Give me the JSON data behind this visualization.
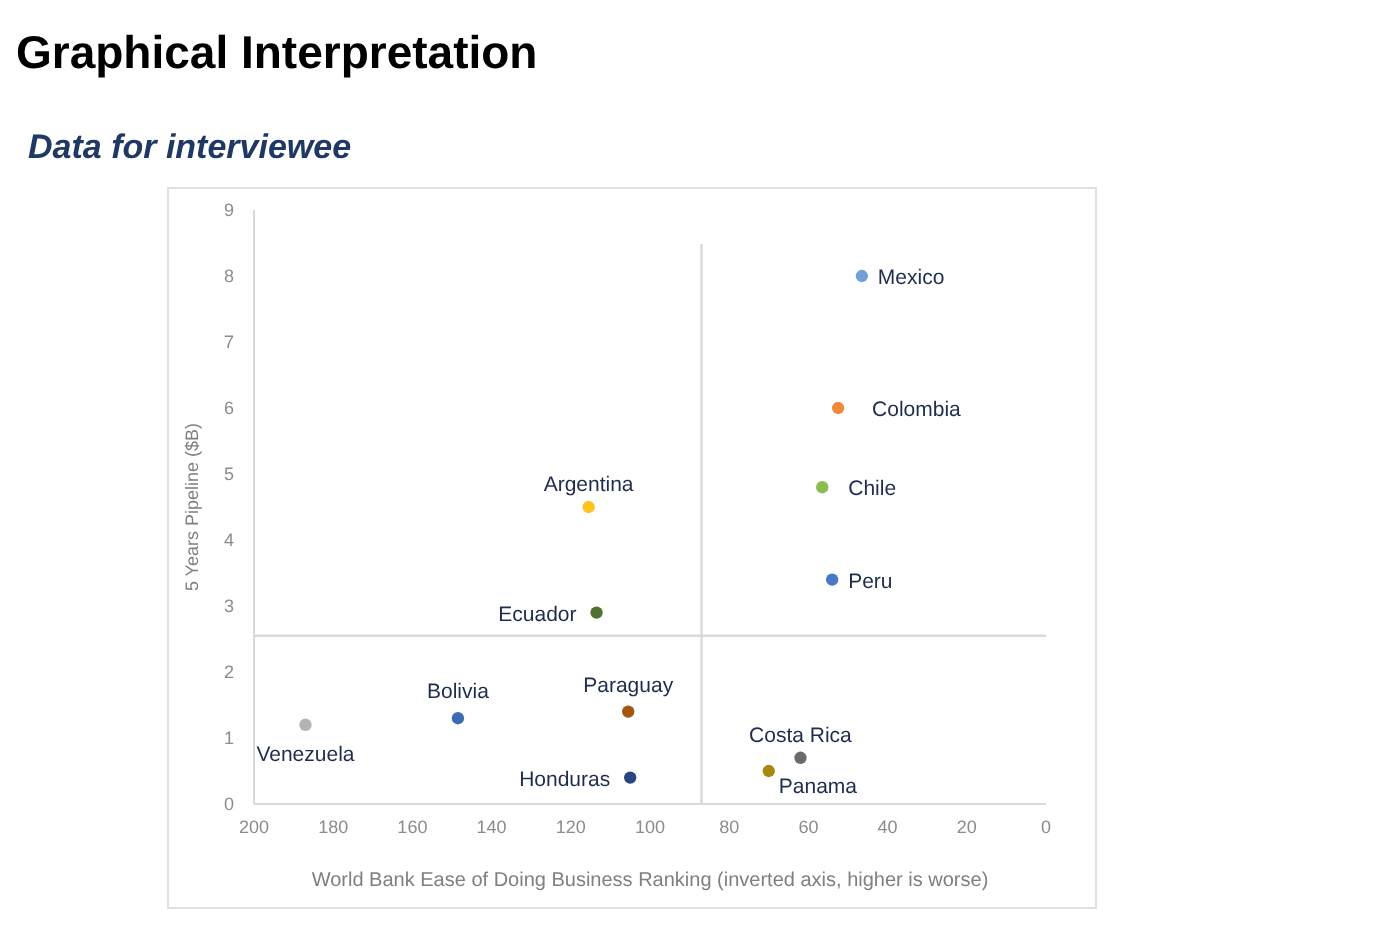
{
  "chart_data": {
    "type": "scatter",
    "title": "Graphical Interpretation",
    "subtitle": "Data for interviewee",
    "xlabel": "World Bank Ease of Doing Business Ranking (inverted axis, higher is worse)",
    "ylabel": "5 Years Pipeline ($B)",
    "xlim": [
      200,
      0
    ],
    "xticks": [
      200,
      180,
      160,
      140,
      120,
      100,
      80,
      60,
      40,
      20,
      0
    ],
    "ylim": [
      0,
      9
    ],
    "yticks": [
      0,
      1,
      2,
      3,
      4,
      5,
      6,
      7,
      8,
      9
    ],
    "grid": false,
    "legend": false,
    "marker": "circle",
    "ref_lines": [
      {
        "axis": "x",
        "value": 87,
        "color": "#d9d9d9"
      },
      {
        "axis": "y",
        "value": 2.55,
        "color": "#d9d9d9"
      }
    ],
    "series": [
      {
        "name": "Mexico",
        "color": "#70a0d8",
        "x": [
          46.5
        ],
        "values": [
          8.0
        ]
      },
      {
        "name": "Colombia",
        "color": "#ed8a3c",
        "x": [
          52.5
        ],
        "values": [
          6.0
        ]
      },
      {
        "name": "Chile",
        "color": "#8cbb4f",
        "x": [
          56.5
        ],
        "values": [
          4.8
        ]
      },
      {
        "name": "Peru",
        "color": "#4a78c8",
        "x": [
          54
        ],
        "values": [
          3.4
        ]
      },
      {
        "name": "Argentina",
        "color": "#fcc21e",
        "x": [
          115.5
        ],
        "values": [
          4.5
        ]
      },
      {
        "name": "Ecuador",
        "color": "#4f7232",
        "x": [
          113.5
        ],
        "values": [
          2.9
        ]
      },
      {
        "name": "Bolivia",
        "color": "#3c6db4",
        "x": [
          148.5
        ],
        "values": [
          1.3
        ]
      },
      {
        "name": "Venezuela",
        "color": "#b4b4b4",
        "x": [
          187
        ],
        "values": [
          1.2
        ]
      },
      {
        "name": "Paraguay",
        "color": "#a4550e",
        "x": [
          105.5
        ],
        "values": [
          1.4
        ]
      },
      {
        "name": "Honduras",
        "color": "#2a4680",
        "x": [
          105
        ],
        "values": [
          0.4
        ]
      },
      {
        "name": "Costa Rica",
        "color": "#6a6a6a",
        "x": [
          62
        ],
        "values": [
          0.7
        ]
      },
      {
        "name": "Panama",
        "color": "#a98810",
        "x": [
          70
        ],
        "values": [
          0.5
        ]
      }
    ]
  }
}
